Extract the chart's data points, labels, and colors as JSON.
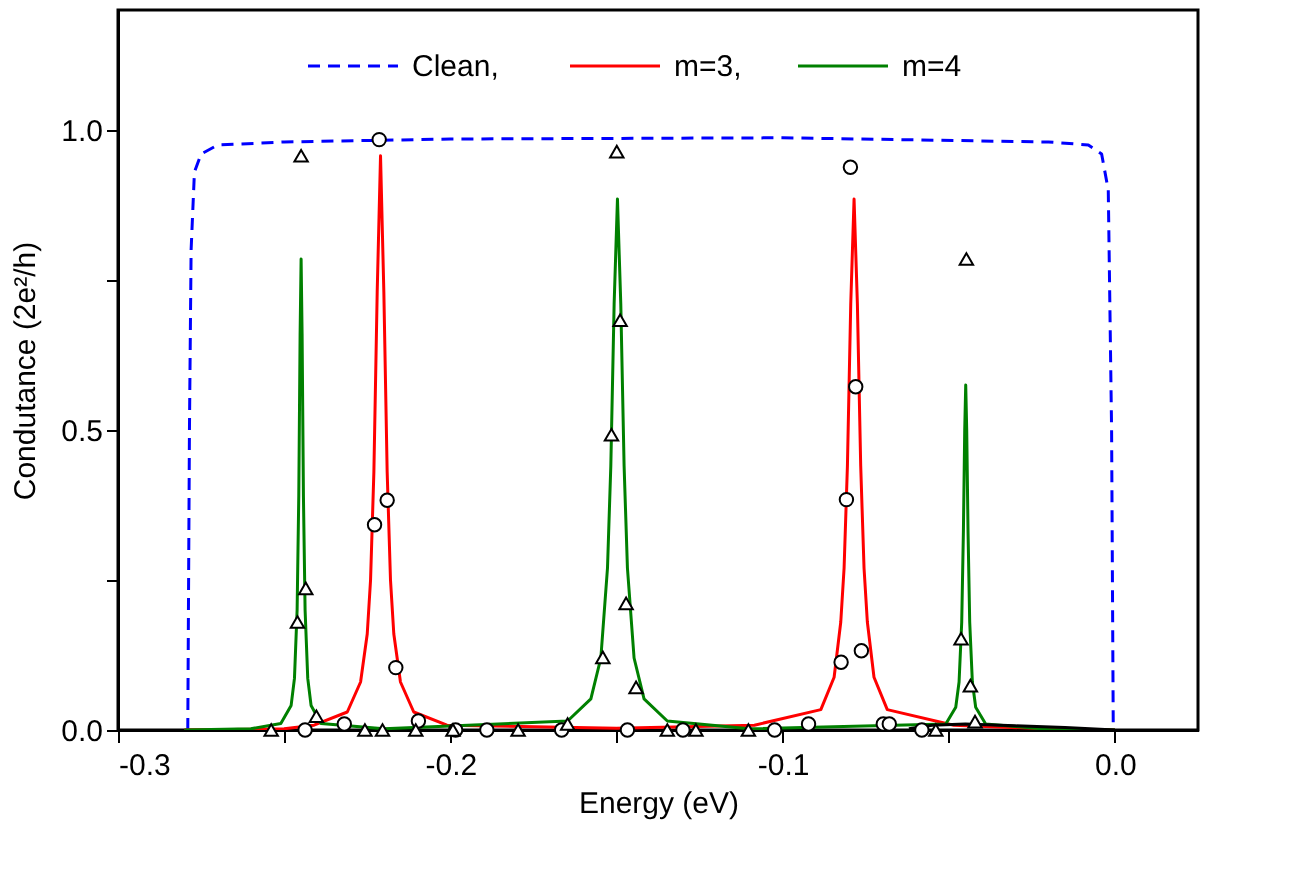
{
  "chart_data": {
    "type": "line",
    "xlabel": "Energy (eV)",
    "ylabel": "Condutance (2e²/h)",
    "xlim": [
      -0.3,
      0.025
    ],
    "ylim": [
      0,
      1.2
    ],
    "xticks": [
      -0.3,
      {
        "value": -0.25,
        "label": null
      },
      -0.2,
      {
        "value": -0.15,
        "label": null
      },
      -0.1,
      {
        "value": -0.05,
        "label": null
      },
      {
        "value": 0,
        "label": "0.0"
      }
    ],
    "yticks": [
      {
        "value": 0,
        "label": "0.0"
      },
      {
        "value": 0.25,
        "label": null
      },
      0.5,
      {
        "value": 0.75,
        "label": null
      },
      {
        "value": 1,
        "label": "1.0"
      }
    ],
    "grid": false,
    "legend": "top",
    "series": [
      {
        "name": "Clean,",
        "color": "#0000ff",
        "line_style": "dashed",
        "x": [
          -0.279,
          -0.2785,
          -0.278,
          -0.277,
          -0.275,
          -0.27,
          -0.25,
          -0.2,
          -0.1,
          -0.02,
          -0.008,
          -0.004,
          -0.002,
          -0.001,
          -0.0005
        ],
        "values": [
          0,
          0.5,
          0.8,
          0.93,
          0.96,
          0.975,
          0.98,
          0.985,
          0.987,
          0.98,
          0.975,
          0.96,
          0.9,
          0.5,
          0
        ]
      },
      {
        "name": "m=3,",
        "color": "#ff0000",
        "line_style": "solid",
        "x": [
          -0.28,
          -0.25,
          -0.241,
          -0.231,
          -0.227,
          -0.225,
          -0.224,
          -0.223,
          -0.222,
          -0.221,
          -0.22,
          -0.219,
          -0.218,
          -0.217,
          -0.215,
          -0.211,
          -0.201,
          -0.15,
          -0.1085,
          -0.0885,
          -0.0845,
          -0.0825,
          -0.0815,
          -0.0805,
          -0.0795,
          -0.0785,
          -0.0775,
          -0.0765,
          -0.0755,
          -0.0745,
          -0.0725,
          -0.0685,
          -0.0485,
          -0.02,
          0
        ],
        "values": [
          0,
          0.002,
          0.008,
          0.03,
          0.08,
          0.16,
          0.25,
          0.43,
          0.73,
          0.957,
          0.73,
          0.43,
          0.25,
          0.16,
          0.08,
          0.03,
          0.008,
          0.003,
          0.008,
          0.034,
          0.088,
          0.18,
          0.27,
          0.44,
          0.71,
          0.885,
          0.71,
          0.44,
          0.27,
          0.18,
          0.088,
          0.034,
          0.008,
          0.002,
          0
        ]
      },
      {
        "name": "m=4",
        "color": "#008000",
        "line_style": "solid",
        "x": [
          -0.28,
          -0.26,
          -0.251,
          -0.2479,
          -0.2469,
          -0.2461,
          -0.2456,
          -0.2452,
          -0.2449,
          -0.2446,
          -0.2442,
          -0.2437,
          -0.2429,
          -0.2419,
          -0.2389,
          -0.22,
          -0.1647,
          -0.1577,
          -0.1547,
          -0.1527,
          -0.1517,
          -0.1507,
          -0.1497,
          -0.1487,
          -0.1477,
          -0.1467,
          -0.1447,
          -0.1417,
          -0.1347,
          -0.11,
          -0.0509,
          -0.0479,
          -0.0469,
          -0.0461,
          -0.0456,
          -0.0452,
          -0.0449,
          -0.0446,
          -0.0442,
          -0.0437,
          -0.0429,
          -0.0419,
          -0.0389,
          -0.02,
          0
        ],
        "values": [
          0,
          0.002,
          0.011,
          0.041,
          0.086,
          0.2,
          0.39,
          0.66,
          0.785,
          0.66,
          0.39,
          0.2,
          0.086,
          0.041,
          0.011,
          0.002,
          0.015,
          0.052,
          0.12,
          0.27,
          0.44,
          0.71,
          0.885,
          0.71,
          0.44,
          0.27,
          0.12,
          0.052,
          0.015,
          0.002,
          0.01,
          0.038,
          0.08,
          0.18,
          0.33,
          0.5,
          0.575,
          0.5,
          0.33,
          0.18,
          0.08,
          0.038,
          0.01,
          0.001,
          0
        ]
      },
      {
        "color": "#000000",
        "line_style": "solid",
        "x": [
          -0.062,
          -0.055,
          -0.045,
          -0.03,
          -0.015,
          0
        ],
        "values": [
          0.002,
          0.008,
          0.01,
          0.007,
          0.004,
          0
        ]
      },
      {
        "type": "scatter",
        "color": "#000000",
        "marker": "circle",
        "x": [
          -0.2214,
          -0.2228,
          -0.219,
          -0.2164,
          -0.2437,
          -0.2319,
          -0.2096,
          -0.1984,
          -0.189,
          -0.1665,
          -0.1467,
          -0.13,
          -0.1024,
          -0.0922,
          -0.0796,
          -0.078,
          -0.0808,
          -0.0824,
          -0.0763,
          -0.0697,
          -0.0679,
          -0.0581
        ],
        "values": [
          0.984,
          0.342,
          0.383,
          0.104,
          0,
          0.01,
          0.015,
          0,
          0,
          0,
          0,
          0,
          0,
          0.01,
          0.938,
          0.572,
          0.384,
          0.113,
          0.132,
          0.01,
          0.01,
          0
        ]
      },
      {
        "type": "scatter",
        "color": "#000000",
        "marker": "triangle",
        "x": [
          -0.2449,
          -0.246,
          -0.2435,
          -0.2403,
          -0.2539,
          -0.2257,
          -0.2204,
          -0.2104,
          -0.1992,
          -0.1796,
          -0.1647,
          -0.1499,
          -0.1515,
          -0.1489,
          -0.1471,
          -0.1541,
          -0.1441,
          -0.1347,
          -0.1261,
          -0.1103,
          -0.0539,
          -0.0447,
          -0.0463,
          -0.0435,
          -0.0421
        ],
        "values": [
          0.957,
          0.18,
          0.236,
          0.023,
          0,
          0,
          0,
          0,
          0,
          0,
          0.01,
          0.964,
          0.492,
          0.683,
          0.211,
          0.121,
          0.071,
          0,
          0,
          0,
          0,
          0.785,
          0.152,
          0.074,
          0.014
        ]
      }
    ]
  }
}
